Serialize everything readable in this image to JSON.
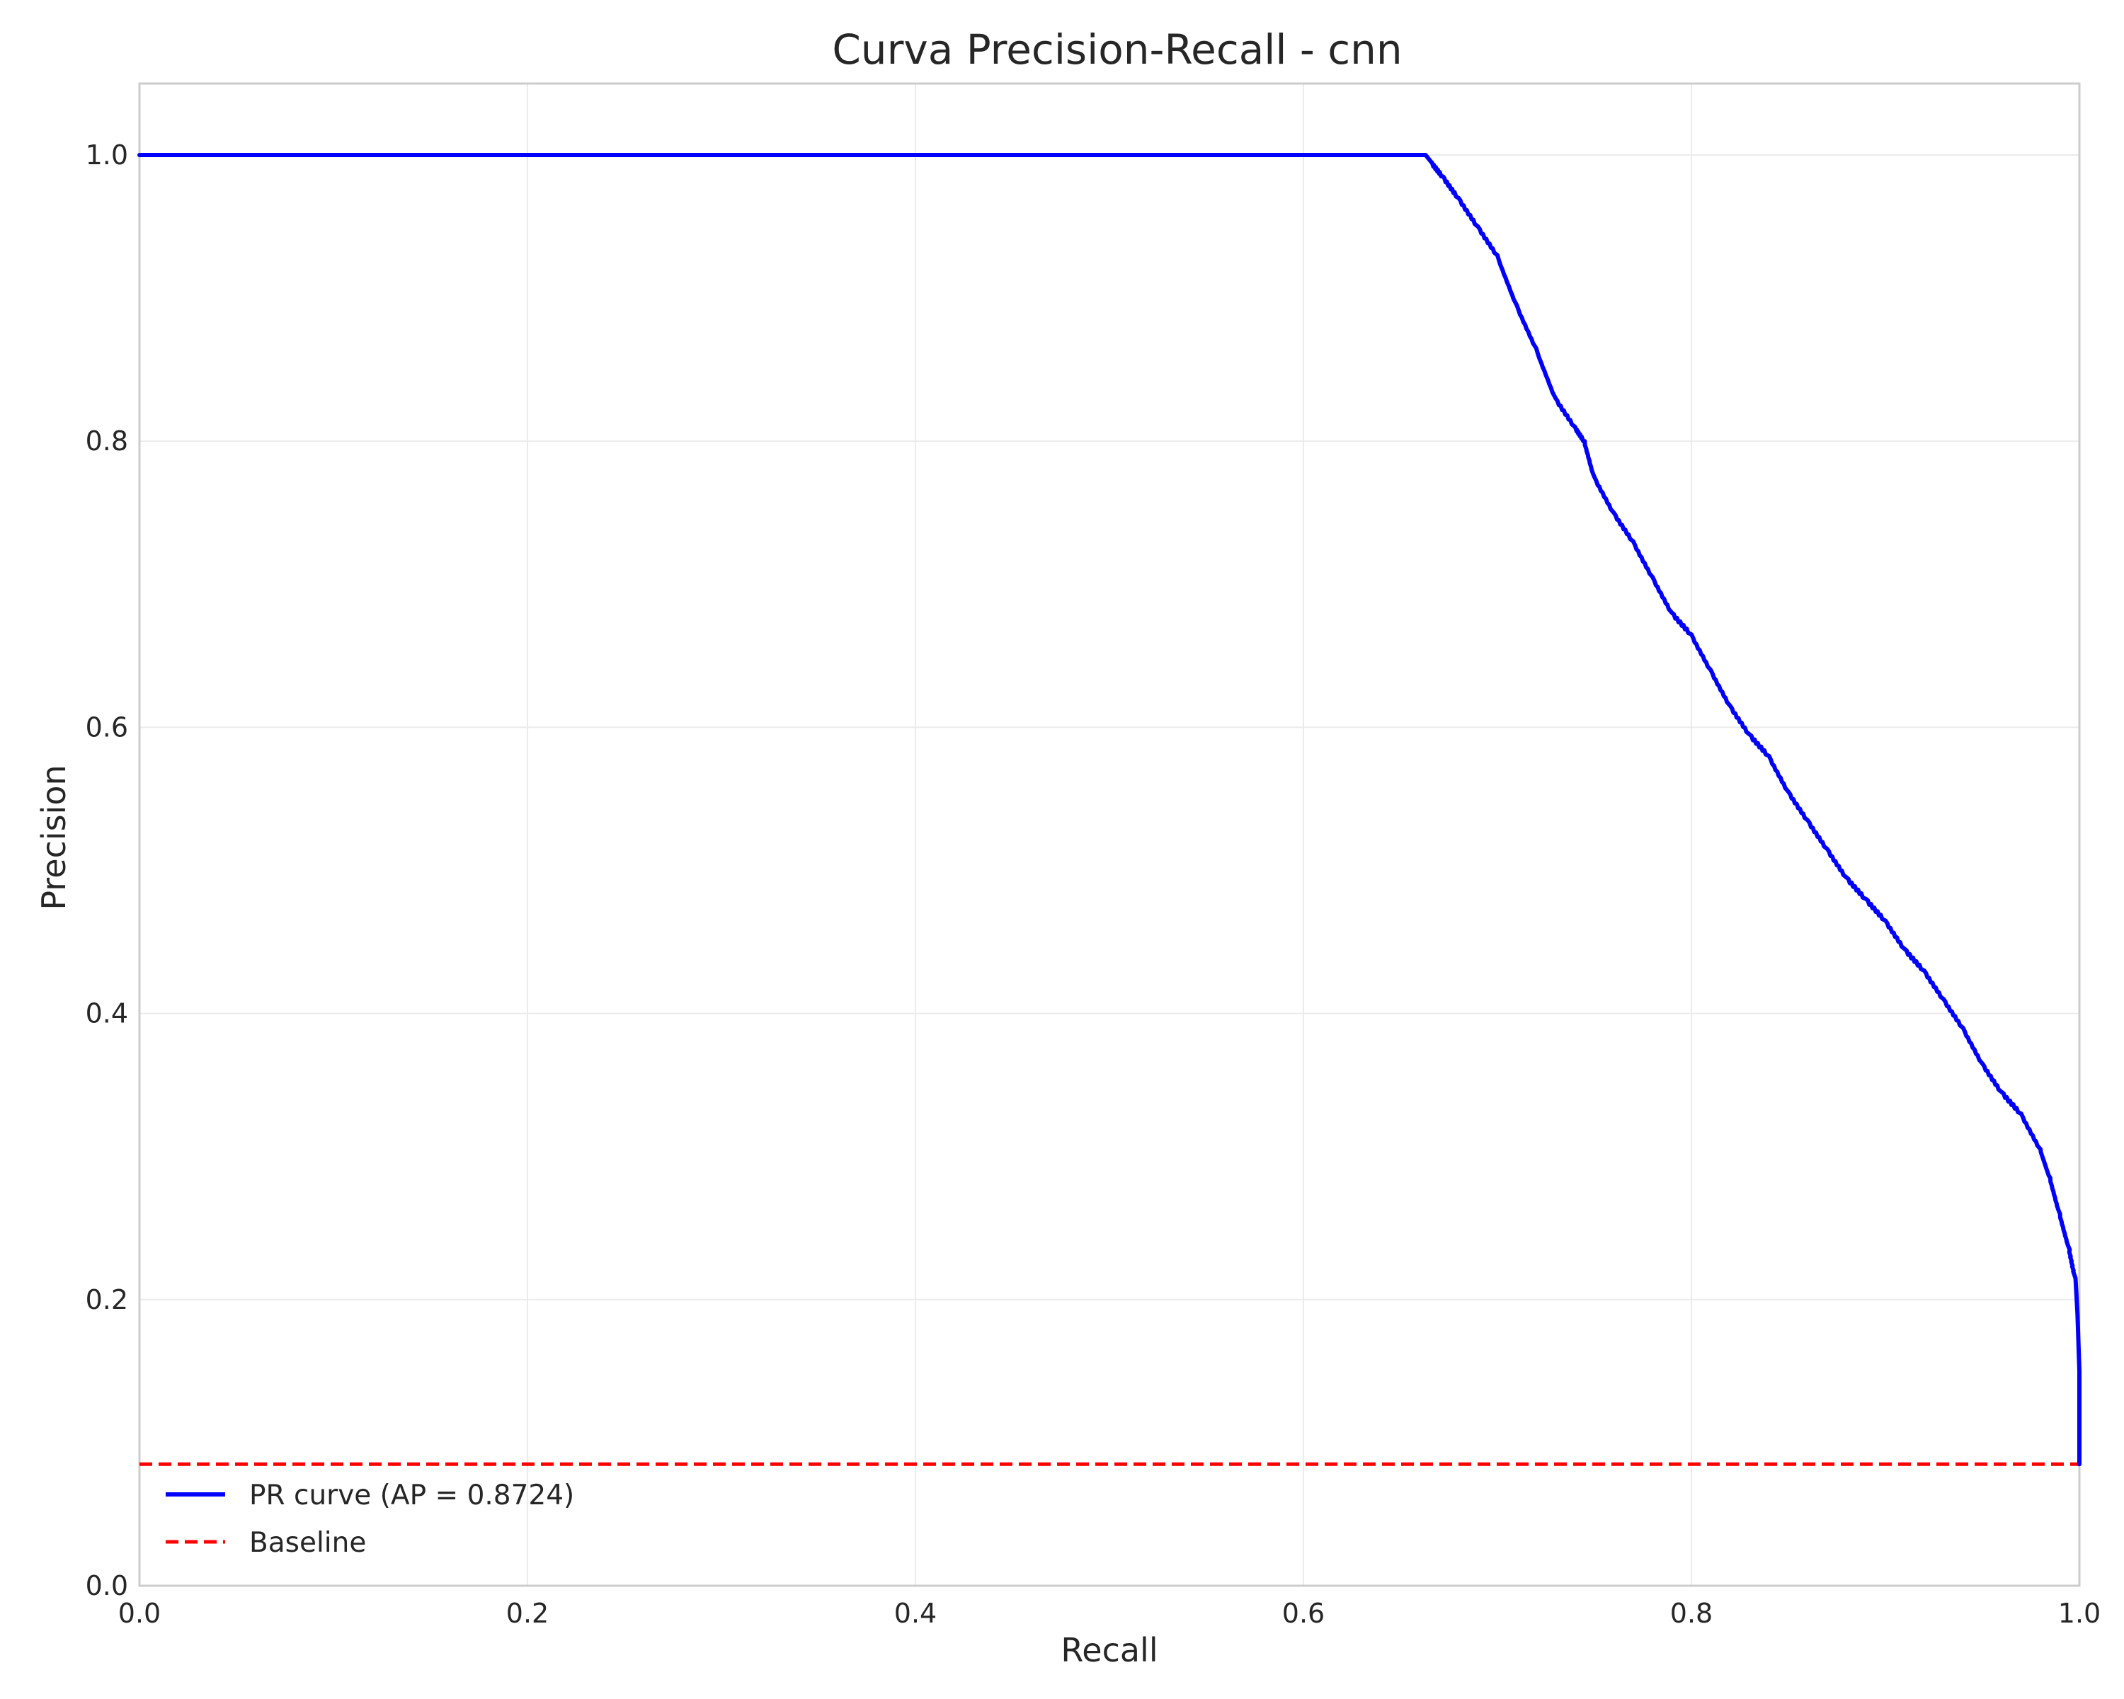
{
  "colors": {
    "curve": "#0000ff",
    "baseline": "#ff0000",
    "grid": "#ebebeb",
    "frame": "#cccccc",
    "text": "#262626",
    "background": "#ffffff"
  },
  "chart_data": {
    "type": "line",
    "title": "Curva Precision-Recall - cnn",
    "xlabel": "Recall",
    "ylabel": "Precision",
    "xlim": [
      0.0,
      1.0
    ],
    "ylim": [
      0.0,
      1.05
    ],
    "grid": true,
    "legend_position": "lower-left",
    "xticks": [
      0.0,
      0.2,
      0.4,
      0.6,
      0.8,
      1.0
    ],
    "xtick_labels": [
      "0.0",
      "0.2",
      "0.4",
      "0.6",
      "0.8",
      "1.0"
    ],
    "yticks": [
      0.0,
      0.2,
      0.4,
      0.6,
      0.8,
      1.0
    ],
    "ytick_labels": [
      "0.0",
      "0.2",
      "0.4",
      "0.6",
      "0.8",
      "1.0"
    ],
    "series": [
      {
        "name": "PR curve (AP = 0.8724)",
        "style": "solid",
        "x": [
          0.0,
          0.663,
          0.666,
          0.672,
          0.68,
          0.69,
          0.7,
          0.71,
          0.72,
          0.73,
          0.74,
          0.745,
          0.75,
          0.76,
          0.77,
          0.78,
          0.79,
          0.8,
          0.81,
          0.82,
          0.83,
          0.84,
          0.85,
          0.86,
          0.87,
          0.88,
          0.89,
          0.9,
          0.91,
          0.92,
          0.93,
          0.94,
          0.95,
          0.96,
          0.97,
          0.98,
          0.985,
          0.99,
          0.995,
          0.998,
          0.999,
          1.0,
          1.0
        ],
        "y": [
          1.0,
          1.0,
          0.995,
          0.985,
          0.97,
          0.95,
          0.93,
          0.895,
          0.865,
          0.83,
          0.81,
          0.8,
          0.775,
          0.75,
          0.73,
          0.705,
          0.68,
          0.665,
          0.64,
          0.615,
          0.595,
          0.58,
          0.555,
          0.535,
          0.515,
          0.495,
          0.48,
          0.465,
          0.445,
          0.43,
          0.41,
          0.39,
          0.365,
          0.345,
          0.33,
          0.305,
          0.285,
          0.26,
          0.235,
          0.215,
          0.19,
          0.15,
          0.085
        ]
      },
      {
        "name": "Baseline",
        "style": "dashed",
        "x": [
          0.0,
          1.0
        ],
        "y": [
          0.085,
          0.085
        ]
      }
    ]
  }
}
